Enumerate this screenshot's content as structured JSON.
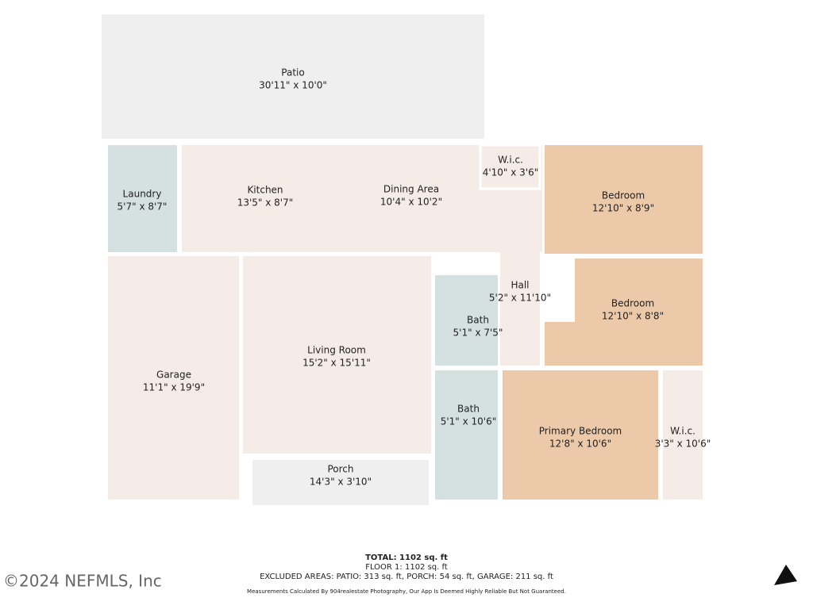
{
  "rooms": [
    {
      "name": "Patio",
      "size": "30'11\" x 10'0\""
    },
    {
      "name": "Laundry",
      "size": "5'7\" x 8'7\""
    },
    {
      "name": "Kitchen",
      "size": "13'5\" x 8'7\""
    },
    {
      "name": "Dining Area",
      "size": "10'4\" x 10'2\""
    },
    {
      "name": "W.i.c.",
      "size": "4'10\" x 3'6\""
    },
    {
      "name": "Bedroom",
      "size": "12'10\" x 8'9\""
    },
    {
      "name": "Hall",
      "size": "5'2\" x 11'10\""
    },
    {
      "name": "Bedroom",
      "size": "12'10\" x 8'8\""
    },
    {
      "name": "Bath",
      "size": "5'1\" x 7'5\""
    },
    {
      "name": "Living Room",
      "size": "15'2\" x 15'11\""
    },
    {
      "name": "Garage",
      "size": "11'1\" x 19'9\""
    },
    {
      "name": "Bath",
      "size": "5'1\" x 10'6\""
    },
    {
      "name": "Primary Bedroom",
      "size": "12'8\" x 10'6\""
    },
    {
      "name": "W.i.c.",
      "size": "3'3\" x 10'6\""
    },
    {
      "name": "Porch",
      "size": "14'3\" x 3'10\""
    }
  ],
  "summary": {
    "total": "TOTAL: 1102 sq. ft",
    "floor": "FLOOR 1: 1102 sq. ft",
    "excluded": "EXCLUDED AREAS: PATIO: 313 sq. ft, PORCH: 54 sq. ft, GARAGE: 211 sq. ft",
    "disclaimer": "Measurements Calculated By 904realestate Photography, Our App Is Deemed Highly Reliable But Not Guaranteed."
  },
  "watermark": "©2024 NEFMLS, Inc"
}
